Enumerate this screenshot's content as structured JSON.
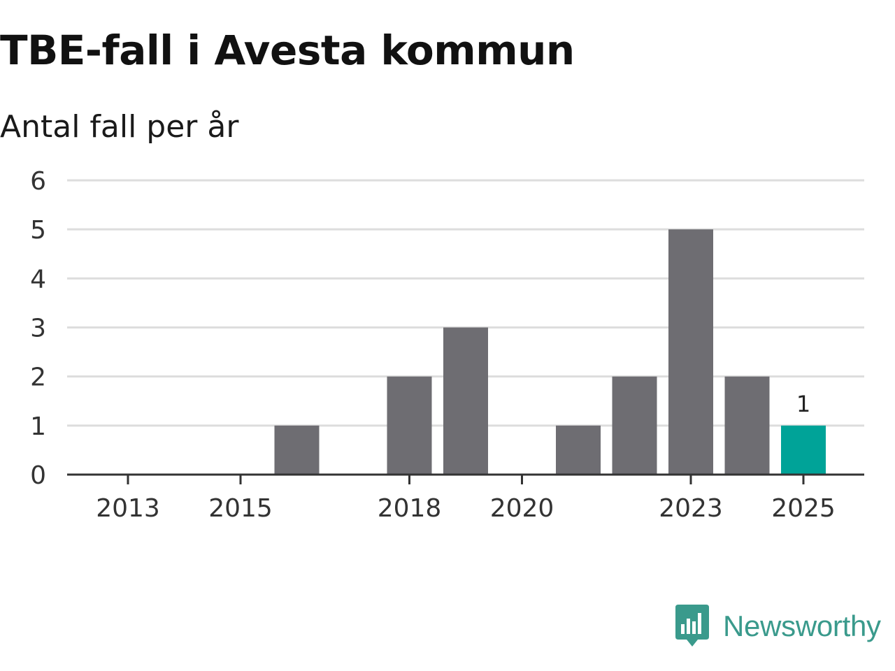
{
  "chart_data": {
    "type": "bar",
    "title": "TBE-fall i Avesta kommun",
    "subtitle": "Antal fall per år",
    "xlabel": "",
    "ylabel": "",
    "categories": [
      "2013",
      "2014",
      "2015",
      "2016",
      "2017",
      "2018",
      "2019",
      "2020",
      "2021",
      "2022",
      "2023",
      "2024",
      "2025"
    ],
    "values": [
      0,
      0,
      0,
      1,
      0,
      2,
      3,
      0,
      1,
      2,
      5,
      2,
      1
    ],
    "ylim": [
      0,
      6
    ],
    "yticks": [
      "0",
      "1",
      "2",
      "3",
      "4",
      "5",
      "6"
    ],
    "xtick_labels": [
      "2013",
      "2015",
      "2018",
      "2020",
      "2023",
      "2025"
    ],
    "highlight_category": "2025",
    "highlight_label": "1",
    "grid": true,
    "colors": {
      "bar": "#6e6d72",
      "highlight": "#00a398",
      "grid": "#dddddd",
      "axis": "#333333"
    }
  },
  "brand": {
    "name": "Newsworthy",
    "icon": "newsworthy-logo-icon",
    "color": "#3a9a8c"
  }
}
